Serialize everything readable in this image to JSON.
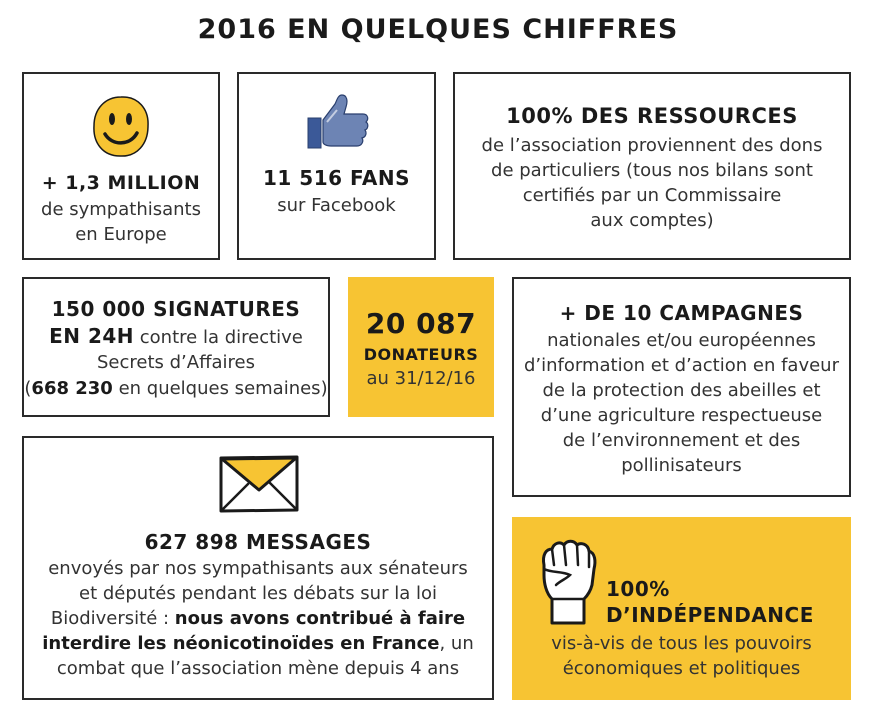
{
  "title": "2016 EN QUELQUES CHIFFRES",
  "colors": {
    "accent_yellow": "#f7c433",
    "fb_blue": "#3b5998",
    "border": "#2a2a2a"
  },
  "cards": {
    "sympathisants": {
      "icon": "smiley-icon",
      "headline": "+ 1,3 MILLION",
      "line1": "de sympathisants",
      "line2": "en Europe"
    },
    "facebook": {
      "icon": "thumbs-up-icon",
      "headline": "11 516 FANS",
      "line1": "sur Facebook"
    },
    "ressources": {
      "headline": "100% DES RESSOURCES",
      "line1": "de l’association proviennent des dons",
      "line2": "de particuliers (tous nos bilans sont",
      "line3": "certifiés par un Commissaire",
      "line4": "aux comptes)"
    },
    "signatures": {
      "headline1": "150 000 SIGNATURES",
      "headline2_bold": "EN 24H",
      "headline2_rest": " contre la directive",
      "line1": "Secrets d’Affaires",
      "paren_open": "(",
      "count_bold": "668 230",
      "paren_rest": " en quelques semaines)"
    },
    "donateurs": {
      "number": "20 087",
      "label": "DONATEURS",
      "date": "au 31/12/16"
    },
    "campagnes": {
      "headline": "+ DE 10 CAMPAGNES",
      "line1": "nationales et/ou européennes",
      "line2": "d’information et d’action en faveur",
      "line3": "de la protection des abeilles et",
      "line4": "d’une agriculture respectueuse",
      "line5": "de l’environnement et des",
      "line6": "pollinisateurs"
    },
    "messages": {
      "icon": "envelope-icon",
      "headline": "627 898 MESSAGES",
      "line1": "envoyés par nos sympathisants aux sénateurs",
      "line2": "et députés pendant les débats sur la loi",
      "line3_pre": "Biodiversité : ",
      "line3_bold": "nous avons contribué à faire",
      "line4_bold": "interdire les néonicotinoïdes en France",
      "line4_rest": ", un",
      "line5": "combat que l’association mène depuis 4 ans"
    },
    "independance": {
      "icon": "raised-fist-icon",
      "headline1": "100%",
      "headline2": "D’INDÉPENDANCE",
      "line1": "vis-à-vis de tous les pouvoirs",
      "line2": "économiques et politiques"
    }
  }
}
